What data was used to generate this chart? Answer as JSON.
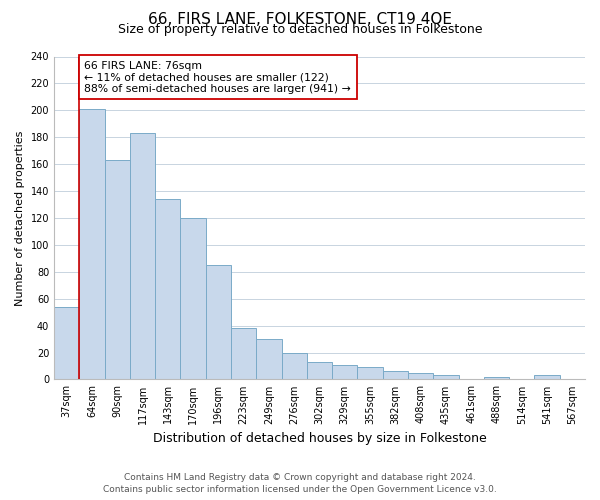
{
  "title": "66, FIRS LANE, FOLKESTONE, CT19 4QE",
  "subtitle": "Size of property relative to detached houses in Folkestone",
  "xlabel": "Distribution of detached houses by size in Folkestone",
  "ylabel": "Number of detached properties",
  "bins": [
    "37sqm",
    "64sqm",
    "90sqm",
    "117sqm",
    "143sqm",
    "170sqm",
    "196sqm",
    "223sqm",
    "249sqm",
    "276sqm",
    "302sqm",
    "329sqm",
    "355sqm",
    "382sqm",
    "408sqm",
    "435sqm",
    "461sqm",
    "488sqm",
    "514sqm",
    "541sqm",
    "567sqm"
  ],
  "values": [
    54,
    201,
    163,
    183,
    134,
    120,
    85,
    38,
    30,
    20,
    13,
    11,
    9,
    6,
    5,
    3,
    0,
    2,
    0,
    3,
    0
  ],
  "bar_color": "#c8d8eb",
  "bar_edge_color": "#7aaac8",
  "property_line_color": "#cc0000",
  "property_bin_index": 1,
  "annotation_line1": "66 FIRS LANE: 76sqm",
  "annotation_line2": "← 11% of detached houses are smaller (122)",
  "annotation_line3": "88% of semi-detached houses are larger (941) →",
  "annotation_box_facecolor": "#ffffff",
  "annotation_box_edgecolor": "#cc0000",
  "ylim": [
    0,
    240
  ],
  "yticks": [
    0,
    20,
    40,
    60,
    80,
    100,
    120,
    140,
    160,
    180,
    200,
    220,
    240
  ],
  "footer_line1": "Contains HM Land Registry data © Crown copyright and database right 2024.",
  "footer_line2": "Contains public sector information licensed under the Open Government Licence v3.0.",
  "background_color": "#ffffff",
  "grid_color": "#c8d4e0",
  "title_fontsize": 11,
  "subtitle_fontsize": 9,
  "ylabel_fontsize": 8,
  "xlabel_fontsize": 9,
  "tick_fontsize": 7,
  "footer_fontsize": 6.5
}
